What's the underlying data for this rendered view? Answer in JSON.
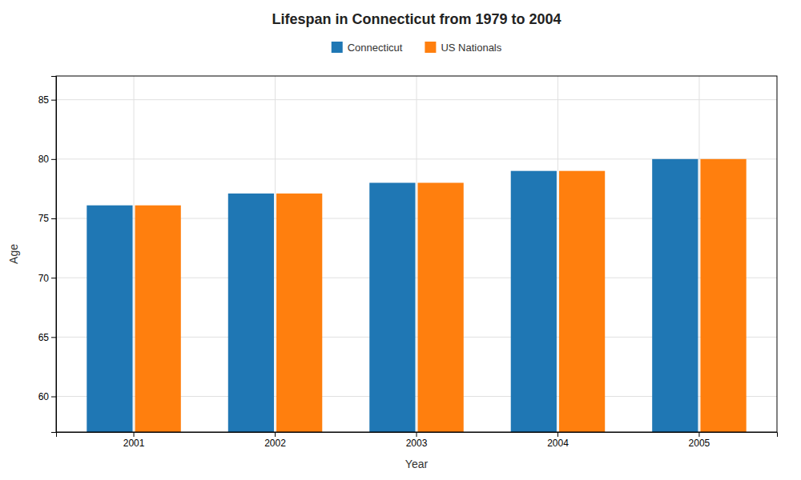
{
  "chart_data": {
    "type": "bar",
    "title": "Lifespan in Connecticut from 1979 to 2004",
    "xlabel": "Year",
    "ylabel": "Age",
    "categories": [
      "2001",
      "2002",
      "2003",
      "2004",
      "2005"
    ],
    "series": [
      {
        "name": "Connecticut",
        "values": [
          76.1,
          77.1,
          78.0,
          79.0,
          80.0
        ]
      },
      {
        "name": "US Nationals",
        "values": [
          76.1,
          77.1,
          78.0,
          79.0,
          80.0
        ]
      }
    ],
    "ylim": [
      57,
      87
    ],
    "yticks": [
      60,
      65,
      70,
      75,
      80,
      85
    ],
    "grid": true,
    "legend": "top"
  }
}
